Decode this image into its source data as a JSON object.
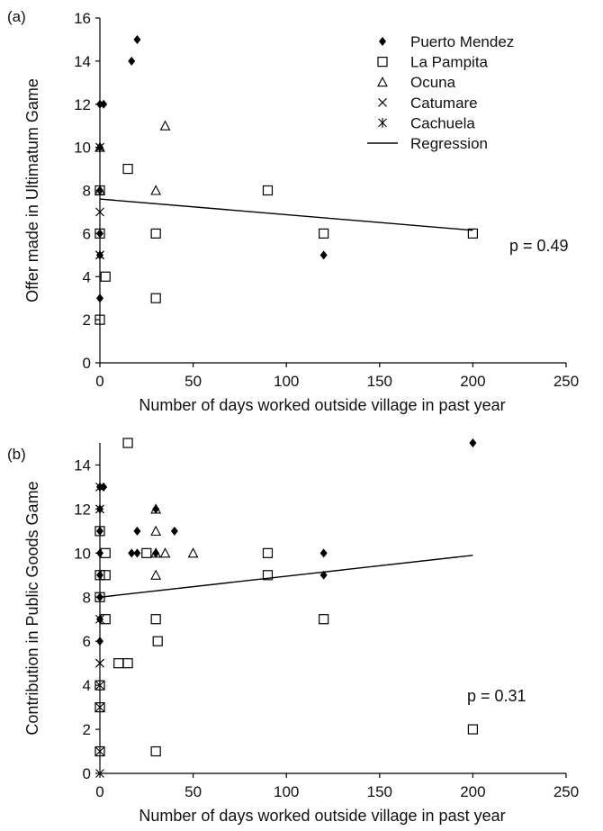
{
  "chart_data": [
    {
      "type": "scatter",
      "panel_label": "(a)",
      "xlabel": "Number of days worked outside village in past year",
      "ylabel": "Offer made in Ultimatum Game",
      "xlim": [
        0,
        250
      ],
      "ylim": [
        0,
        16
      ],
      "xticks": [
        "0",
        "50",
        "100",
        "150",
        "200",
        "250"
      ],
      "yticks": [
        "0",
        "2",
        "4",
        "6",
        "8",
        "10",
        "12",
        "14",
        "16"
      ],
      "legend_position": "top-right",
      "annotation": "p = 0.49",
      "series": [
        {
          "name": "Puerto Mendez",
          "marker": "filled-diamond",
          "points": [
            [
              20,
              15
            ],
            [
              17,
              14
            ],
            [
              0,
              12
            ],
            [
              2,
              12
            ],
            [
              0,
              10
            ],
            [
              0,
              8
            ],
            [
              0,
              6
            ],
            [
              0,
              5
            ],
            [
              0,
              3
            ],
            [
              120,
              5
            ]
          ]
        },
        {
          "name": "La Pampita",
          "marker": "open-square",
          "points": [
            [
              15,
              9
            ],
            [
              90,
              8
            ],
            [
              0,
              8
            ],
            [
              30,
              6
            ],
            [
              120,
              6
            ],
            [
              200,
              6
            ],
            [
              0,
              6
            ],
            [
              3,
              4
            ],
            [
              0,
              2
            ],
            [
              30,
              3
            ]
          ]
        },
        {
          "name": "Ocuna",
          "marker": "open-triangle",
          "points": [
            [
              35,
              11
            ],
            [
              30,
              8
            ],
            [
              0,
              8
            ],
            [
              0,
              10
            ]
          ]
        },
        {
          "name": "Catumare",
          "marker": "x",
          "points": [
            [
              0,
              7
            ],
            [
              0,
              5
            ],
            [
              0,
              10
            ]
          ]
        },
        {
          "name": "Cachuela",
          "marker": "asterisk",
          "points": [
            [
              0,
              10
            ],
            [
              0,
              5
            ]
          ]
        }
      ],
      "regression": {
        "name": "Regression",
        "points": [
          [
            0,
            7.6
          ],
          [
            200,
            6.15
          ]
        ]
      }
    },
    {
      "type": "scatter",
      "panel_label": "(b)",
      "xlabel": "Number of days worked outside village in past year",
      "ylabel": "Contribution in Public Goods Game",
      "xlim": [
        0,
        250
      ],
      "ylim": [
        0,
        15
      ],
      "xticks": [
        "0",
        "50",
        "100",
        "150",
        "200",
        "250"
      ],
      "yticks": [
        "0",
        "2",
        "4",
        "6",
        "8",
        "10",
        "12",
        "14"
      ],
      "annotation": "p = 0.31",
      "series": [
        {
          "name": "Puerto Mendez",
          "marker": "filled-diamond",
          "points": [
            [
              200,
              15
            ],
            [
              2,
              13
            ],
            [
              0,
              13
            ],
            [
              30,
              12
            ],
            [
              0,
              12
            ],
            [
              0,
              11
            ],
            [
              20,
              11
            ],
            [
              40,
              11
            ],
            [
              17,
              10
            ],
            [
              20,
              10
            ],
            [
              30,
              10
            ],
            [
              0,
              10
            ],
            [
              120,
              10
            ],
            [
              120,
              9
            ],
            [
              0,
              9
            ],
            [
              0,
              8
            ],
            [
              0,
              7
            ],
            [
              0,
              6
            ]
          ]
        },
        {
          "name": "La Pampita",
          "marker": "open-square",
          "points": [
            [
              15,
              15
            ],
            [
              0,
              11
            ],
            [
              3,
              10
            ],
            [
              25,
              10
            ],
            [
              90,
              10
            ],
            [
              0,
              9
            ],
            [
              3,
              9
            ],
            [
              90,
              9
            ],
            [
              0,
              8
            ],
            [
              3,
              7
            ],
            [
              30,
              7
            ],
            [
              120,
              7
            ],
            [
              31,
              6
            ],
            [
              10,
              5
            ],
            [
              15,
              5
            ],
            [
              0,
              4
            ],
            [
              0,
              3
            ],
            [
              0,
              1
            ],
            [
              30,
              1
            ],
            [
              200,
              2
            ]
          ]
        },
        {
          "name": "Ocuna",
          "marker": "open-triangle",
          "points": [
            [
              30,
              12
            ],
            [
              30,
              11
            ],
            [
              30,
              10
            ],
            [
              35,
              10
            ],
            [
              50,
              10
            ],
            [
              30,
              9
            ]
          ]
        },
        {
          "name": "Catumare",
          "marker": "x",
          "points": [
            [
              0,
              0
            ],
            [
              0,
              1
            ],
            [
              0,
              5
            ],
            [
              0,
              7
            ],
            [
              0,
              12
            ]
          ]
        },
        {
          "name": "Cachuela",
          "marker": "asterisk",
          "points": [
            [
              0,
              13
            ],
            [
              0,
              12
            ],
            [
              0,
              5
            ],
            [
              0,
              4
            ],
            [
              0,
              3
            ]
          ]
        }
      ],
      "regression": {
        "name": "Regression",
        "points": [
          [
            0,
            8.0
          ],
          [
            200,
            9.9
          ]
        ]
      }
    }
  ]
}
